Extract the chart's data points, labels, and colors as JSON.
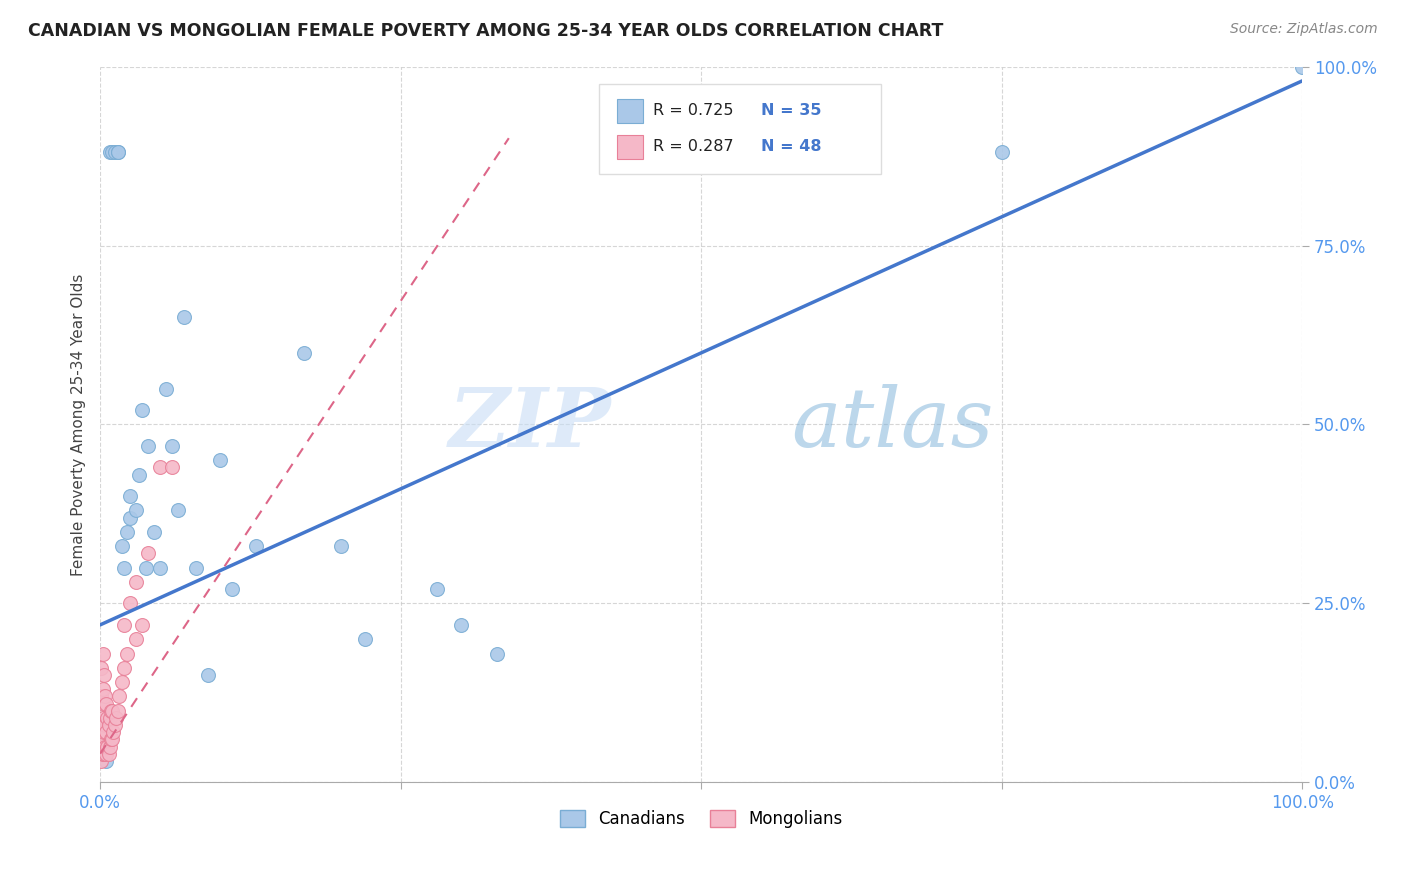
{
  "title": "CANADIAN VS MONGOLIAN FEMALE POVERTY AMONG 25-34 YEAR OLDS CORRELATION CHART",
  "source": "Source: ZipAtlas.com",
  "ylabel": "Female Poverty Among 25-34 Year Olds",
  "watermark_zip": "ZIP",
  "watermark_atlas": "atlas",
  "xlim": [
    0,
    1.0
  ],
  "ylim": [
    0,
    1.0
  ],
  "xticks": [
    0,
    0.25,
    0.5,
    0.75,
    1.0
  ],
  "yticks": [
    0,
    0.25,
    0.5,
    0.75,
    1.0
  ],
  "xticklabels": [
    "0.0%",
    "",
    "",
    "",
    "100.0%"
  ],
  "yticklabels": [
    "0.0%",
    "25.0%",
    "50.0%",
    "75.0%",
    "100.0%"
  ],
  "legend_labels": [
    "Canadians",
    "Mongolians"
  ],
  "canadian_color": "#aac8e8",
  "mongolian_color": "#f5b8c8",
  "canadian_edge": "#7aadd4",
  "mongolian_edge": "#e88098",
  "line_canadian_color": "#4477cc",
  "line_mongolian_color": "#dd6688",
  "background_color": "#ffffff",
  "grid_color": "#cccccc",
  "title_color": "#222222",
  "axis_label_color": "#444444",
  "tick_color": "#5599ee",
  "marker_size": 100,
  "canadians_x": [
    0.005,
    0.008,
    0.01,
    0.012,
    0.015,
    0.015,
    0.018,
    0.02,
    0.022,
    0.025,
    0.025,
    0.03,
    0.032,
    0.035,
    0.038,
    0.04,
    0.045,
    0.05,
    0.055,
    0.06,
    0.065,
    0.07,
    0.08,
    0.09,
    0.1,
    0.11,
    0.13,
    0.17,
    0.2,
    0.22,
    0.28,
    0.3,
    0.33,
    0.75,
    1.0
  ],
  "canadians_y": [
    0.03,
    0.88,
    0.88,
    0.88,
    0.88,
    0.88,
    0.33,
    0.3,
    0.35,
    0.37,
    0.4,
    0.38,
    0.43,
    0.52,
    0.3,
    0.47,
    0.35,
    0.3,
    0.55,
    0.47,
    0.38,
    0.65,
    0.3,
    0.15,
    0.45,
    0.27,
    0.33,
    0.6,
    0.33,
    0.2,
    0.27,
    0.22,
    0.18,
    0.88,
    1.0
  ],
  "mongolians_x": [
    0.0,
    0.0,
    0.001,
    0.001,
    0.001,
    0.001,
    0.001,
    0.002,
    0.002,
    0.002,
    0.002,
    0.002,
    0.003,
    0.003,
    0.003,
    0.003,
    0.004,
    0.004,
    0.004,
    0.005,
    0.005,
    0.005,
    0.006,
    0.006,
    0.007,
    0.007,
    0.008,
    0.008,
    0.009,
    0.009,
    0.01,
    0.01,
    0.011,
    0.012,
    0.013,
    0.015,
    0.016,
    0.018,
    0.02,
    0.02,
    0.022,
    0.025,
    0.03,
    0.03,
    0.035,
    0.04,
    0.05,
    0.06
  ],
  "mongolians_y": [
    0.04,
    0.07,
    0.03,
    0.05,
    0.08,
    0.12,
    0.16,
    0.04,
    0.06,
    0.09,
    0.13,
    0.18,
    0.04,
    0.07,
    0.11,
    0.15,
    0.05,
    0.08,
    0.12,
    0.04,
    0.07,
    0.11,
    0.05,
    0.09,
    0.04,
    0.08,
    0.05,
    0.09,
    0.06,
    0.1,
    0.06,
    0.1,
    0.07,
    0.08,
    0.09,
    0.1,
    0.12,
    0.14,
    0.16,
    0.22,
    0.18,
    0.25,
    0.2,
    0.28,
    0.22,
    0.32,
    0.44,
    0.44
  ],
  "canadian_line_x0": 0.0,
  "canadian_line_y0": 0.22,
  "canadian_line_x1": 1.0,
  "canadian_line_y1": 0.98,
  "mongolian_line_x0": 0.0,
  "mongolian_line_y0": 0.04,
  "mongolian_line_x1": 0.34,
  "mongolian_line_y1": 0.9
}
